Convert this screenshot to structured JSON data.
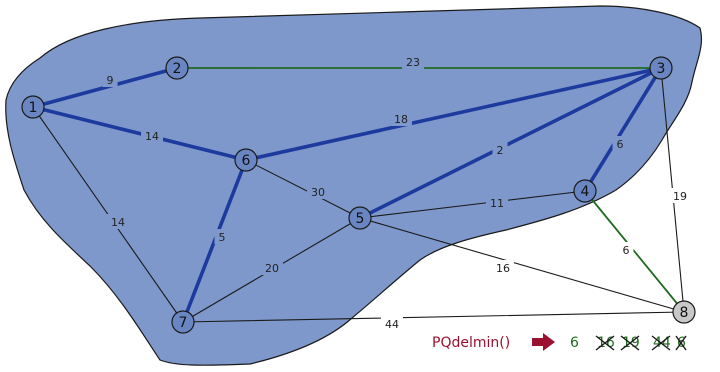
{
  "colors": {
    "region_fill": "#7f98cc",
    "region_stroke": "#1a1a1a",
    "node_fill_in_region": "#6a86c2",
    "node_fill_outside": "#c8c8c8",
    "node_stroke": "#1a1a1a",
    "tree_edge": "#1d3a9e",
    "crossing_edge": "#1f6b1f",
    "plain_edge": "#1a1a1a",
    "pq_label": "#9b1030",
    "pq_arrow": "#9b1030",
    "pq_value": "#1f6b1f"
  },
  "graph": {
    "nodes": [
      {
        "id": "1",
        "label": "1",
        "in_region": true
      },
      {
        "id": "2",
        "label": "2",
        "in_region": true
      },
      {
        "id": "3",
        "label": "3",
        "in_region": true
      },
      {
        "id": "4",
        "label": "4",
        "in_region": true
      },
      {
        "id": "5",
        "label": "5",
        "in_region": true
      },
      {
        "id": "6",
        "label": "6",
        "in_region": true
      },
      {
        "id": "7",
        "label": "7",
        "in_region": true
      },
      {
        "id": "8",
        "label": "8",
        "in_region": false
      }
    ],
    "edges": [
      {
        "from": "1",
        "to": "2",
        "weight": "9",
        "type": "tree"
      },
      {
        "from": "2",
        "to": "3",
        "weight": "23",
        "type": "crossing"
      },
      {
        "from": "1",
        "to": "6",
        "weight": "14",
        "type": "tree"
      },
      {
        "from": "6",
        "to": "3",
        "weight": "18",
        "type": "tree"
      },
      {
        "from": "5",
        "to": "3",
        "weight": "2",
        "type": "tree"
      },
      {
        "from": "3",
        "to": "4",
        "weight": "6",
        "type": "tree"
      },
      {
        "from": "3",
        "to": "8",
        "weight": "19",
        "type": "plain"
      },
      {
        "from": "1",
        "to": "7",
        "weight": "14",
        "type": "plain"
      },
      {
        "from": "6",
        "to": "5",
        "weight": "30",
        "type": "plain"
      },
      {
        "from": "6",
        "to": "7",
        "weight": "5",
        "type": "tree"
      },
      {
        "from": "5",
        "to": "4",
        "weight": "11",
        "type": "plain"
      },
      {
        "from": "4",
        "to": "8",
        "weight": "6",
        "type": "crossing"
      },
      {
        "from": "5",
        "to": "8",
        "weight": "16",
        "type": "plain"
      },
      {
        "from": "7",
        "to": "5",
        "weight": "20",
        "type": "plain"
      },
      {
        "from": "7",
        "to": "8",
        "weight": "44",
        "type": "plain"
      }
    ]
  },
  "pq": {
    "label": "PQdelmin()",
    "value": "6",
    "crossed_values": [
      "16",
      "19",
      "44",
      "6"
    ]
  }
}
